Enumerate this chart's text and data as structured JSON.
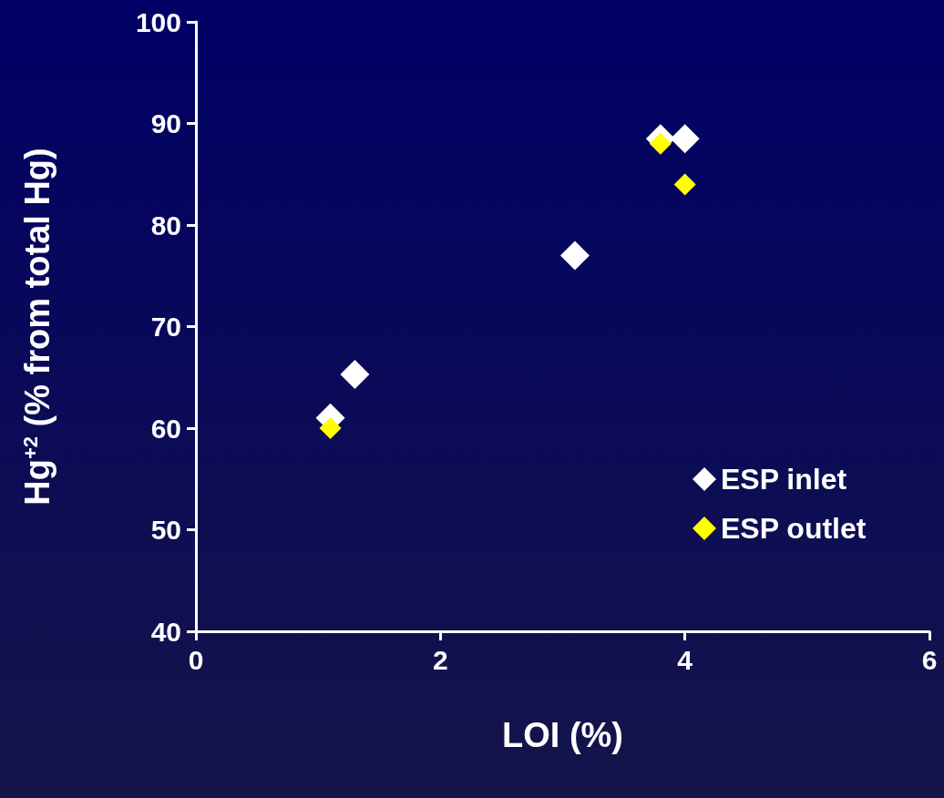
{
  "chart_data": {
    "type": "scatter",
    "xlabel": "LOI (%)",
    "ylabel": "Hg$^{+2}$ (% from total Hg)",
    "xlim": [
      0,
      6
    ],
    "xticks": [
      0,
      2,
      4,
      6
    ],
    "ylim": [
      40,
      100
    ],
    "yticks": [
      40,
      50,
      60,
      70,
      80,
      90,
      100
    ],
    "grid": false,
    "legend": "bottom right",
    "marker": "diamond",
    "series": [
      {
        "name": "ESP inlet",
        "color": "#ffffff",
        "x": [
          1.1,
          1.3,
          3.1,
          3.8,
          4.0
        ],
        "values": [
          61,
          65.3,
          77,
          88.5,
          88.5
        ]
      },
      {
        "name": "ESP outlet",
        "color": "#ffff00",
        "x": [
          1.1,
          3.8,
          4.0
        ],
        "values": [
          60,
          88,
          84
        ]
      }
    ]
  }
}
